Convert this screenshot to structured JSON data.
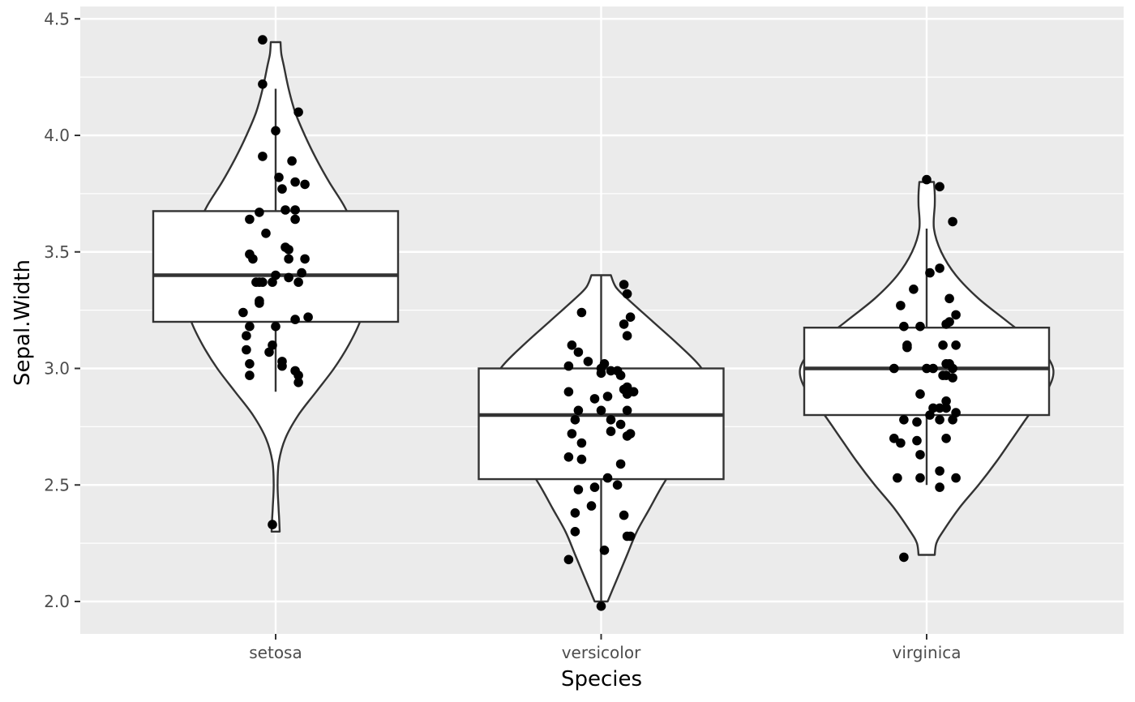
{
  "chart_data": {
    "type": "violin+boxplot+jitter",
    "xlabel": "Species",
    "ylabel": "Sepal.Width",
    "ylim": [
      1.86,
      4.52
    ],
    "y_ticks": [
      2.0,
      2.5,
      3.0,
      3.5,
      4.0,
      4.5
    ],
    "y_tick_labels": [
      "2.0",
      "2.5",
      "3.0",
      "3.5",
      "4.0",
      "4.5"
    ],
    "grid": true,
    "colors": {
      "panel": "#ebebeb",
      "grid": "#ffffff",
      "outline": "#333333",
      "point": "#000000",
      "fill": "#ffffff"
    },
    "categories": [
      "setosa",
      "versicolor",
      "virginica"
    ],
    "groups": [
      {
        "name": "setosa",
        "box": {
          "lower_whisker": 2.9,
          "q1": 3.2,
          "median": 3.4,
          "q3": 3.675,
          "upper_whisker": 4.2
        },
        "violin": [
          [
            2.3,
            0.025
          ],
          [
            2.35,
            0.022
          ],
          [
            2.4,
            0.018
          ],
          [
            2.5,
            0.012
          ],
          [
            2.6,
            0.02
          ],
          [
            2.7,
            0.06
          ],
          [
            2.8,
            0.14
          ],
          [
            2.9,
            0.25
          ],
          [
            3.0,
            0.36
          ],
          [
            3.1,
            0.45
          ],
          [
            3.2,
            0.52
          ],
          [
            3.3,
            0.56
          ],
          [
            3.4,
            0.57
          ],
          [
            3.5,
            0.55
          ],
          [
            3.6,
            0.49
          ],
          [
            3.7,
            0.42
          ],
          [
            3.8,
            0.33
          ],
          [
            3.9,
            0.25
          ],
          [
            4.0,
            0.18
          ],
          [
            4.1,
            0.12
          ],
          [
            4.2,
            0.08
          ],
          [
            4.3,
            0.05
          ],
          [
            4.35,
            0.035
          ],
          [
            4.4,
            0.03
          ]
        ],
        "points": [
          [
            -0.04,
            4.41
          ],
          [
            -0.04,
            4.22
          ],
          [
            0.07,
            4.1
          ],
          [
            0.0,
            4.02
          ],
          [
            -0.04,
            3.91
          ],
          [
            0.05,
            3.89
          ],
          [
            0.01,
            3.82
          ],
          [
            0.06,
            3.8
          ],
          [
            0.09,
            3.79
          ],
          [
            0.02,
            3.77
          ],
          [
            0.03,
            3.68
          ],
          [
            0.06,
            3.68
          ],
          [
            -0.05,
            3.67
          ],
          [
            -0.08,
            3.64
          ],
          [
            0.06,
            3.64
          ],
          [
            -0.03,
            3.58
          ],
          [
            0.03,
            3.52
          ],
          [
            0.04,
            3.51
          ],
          [
            -0.08,
            3.49
          ],
          [
            -0.07,
            3.47
          ],
          [
            0.04,
            3.47
          ],
          [
            0.09,
            3.47
          ],
          [
            0.08,
            3.41
          ],
          [
            0.0,
            3.4
          ],
          [
            0.04,
            3.39
          ],
          [
            -0.06,
            3.37
          ],
          [
            -0.05,
            3.37
          ],
          [
            -0.04,
            3.37
          ],
          [
            -0.01,
            3.37
          ],
          [
            0.07,
            3.37
          ],
          [
            -0.05,
            3.29
          ],
          [
            -0.05,
            3.28
          ],
          [
            -0.1,
            3.24
          ],
          [
            0.1,
            3.22
          ],
          [
            0.06,
            3.21
          ],
          [
            -0.08,
            3.18
          ],
          [
            0.0,
            3.18
          ],
          [
            -0.09,
            3.14
          ],
          [
            -0.01,
            3.1
          ],
          [
            -0.09,
            3.08
          ],
          [
            -0.02,
            3.07
          ],
          [
            0.02,
            3.03
          ],
          [
            -0.08,
            3.02
          ],
          [
            0.02,
            3.01
          ],
          [
            0.06,
            2.99
          ],
          [
            -0.08,
            2.97
          ],
          [
            0.07,
            2.97
          ],
          [
            0.07,
            2.94
          ],
          [
            -0.01,
            2.33
          ]
        ]
      },
      {
        "name": "versicolor",
        "box": {
          "lower_whisker": 2.0,
          "q1": 2.525,
          "median": 2.8,
          "q3": 3.0,
          "upper_whisker": 3.4
        },
        "violin": [
          [
            2.0,
            0.04
          ],
          [
            2.05,
            0.07
          ],
          [
            2.1,
            0.1
          ],
          [
            2.2,
            0.16
          ],
          [
            2.3,
            0.22
          ],
          [
            2.4,
            0.3
          ],
          [
            2.5,
            0.38
          ],
          [
            2.6,
            0.47
          ],
          [
            2.7,
            0.57
          ],
          [
            2.8,
            0.65
          ],
          [
            2.9,
            0.68
          ],
          [
            3.0,
            0.62
          ],
          [
            3.1,
            0.48
          ],
          [
            3.2,
            0.32
          ],
          [
            3.3,
            0.16
          ],
          [
            3.35,
            0.09
          ],
          [
            3.4,
            0.06
          ]
        ],
        "points": [
          [
            0.0,
            1.98
          ],
          [
            -0.1,
            2.18
          ],
          [
            0.01,
            2.22
          ],
          [
            0.09,
            2.28
          ],
          [
            0.08,
            2.28
          ],
          [
            -0.08,
            2.3
          ],
          [
            0.07,
            2.37
          ],
          [
            -0.08,
            2.38
          ],
          [
            -0.03,
            2.41
          ],
          [
            -0.02,
            2.49
          ],
          [
            -0.07,
            2.48
          ],
          [
            0.05,
            2.5
          ],
          [
            0.02,
            2.53
          ],
          [
            0.06,
            2.59
          ],
          [
            -0.1,
            2.62
          ],
          [
            -0.06,
            2.61
          ],
          [
            -0.06,
            2.68
          ],
          [
            -0.09,
            2.72
          ],
          [
            0.08,
            2.71
          ],
          [
            0.09,
            2.72
          ],
          [
            0.03,
            2.73
          ],
          [
            0.06,
            2.76
          ],
          [
            -0.08,
            2.78
          ],
          [
            0.03,
            2.78
          ],
          [
            -0.07,
            2.82
          ],
          [
            0.0,
            2.82
          ],
          [
            0.08,
            2.82
          ],
          [
            -0.02,
            2.87
          ],
          [
            0.02,
            2.88
          ],
          [
            -0.1,
            2.9
          ],
          [
            0.1,
            2.9
          ],
          [
            0.08,
            2.89
          ],
          [
            0.07,
            2.91
          ],
          [
            0.08,
            2.92
          ],
          [
            0.0,
            2.98
          ],
          [
            0.05,
            2.99
          ],
          [
            0.03,
            2.99
          ],
          [
            0.06,
            2.97
          ],
          [
            -0.04,
            3.03
          ],
          [
            0.01,
            3.02
          ],
          [
            0.0,
            3.0
          ],
          [
            -0.1,
            3.01
          ],
          [
            -0.07,
            3.07
          ],
          [
            -0.09,
            3.1
          ],
          [
            0.08,
            3.14
          ],
          [
            0.07,
            3.19
          ],
          [
            -0.06,
            3.24
          ],
          [
            0.09,
            3.22
          ],
          [
            0.08,
            3.32
          ],
          [
            0.07,
            3.36
          ]
        ]
      },
      {
        "name": "virginica",
        "box": {
          "lower_whisker": 2.5,
          "q1": 2.8,
          "median": 3.0,
          "q3": 3.175,
          "upper_whisker": 3.6
        },
        "violin": [
          [
            2.2,
            0.05
          ],
          [
            2.25,
            0.06
          ],
          [
            2.3,
            0.1
          ],
          [
            2.4,
            0.2
          ],
          [
            2.5,
            0.32
          ],
          [
            2.6,
            0.43
          ],
          [
            2.7,
            0.53
          ],
          [
            2.8,
            0.63
          ],
          [
            2.9,
            0.74
          ],
          [
            3.0,
            0.78
          ],
          [
            3.1,
            0.68
          ],
          [
            3.2,
            0.5
          ],
          [
            3.3,
            0.32
          ],
          [
            3.4,
            0.18
          ],
          [
            3.5,
            0.09
          ],
          [
            3.6,
            0.045
          ],
          [
            3.7,
            0.05
          ],
          [
            3.75,
            0.05
          ],
          [
            3.8,
            0.045
          ]
        ],
        "points": [
          [
            -0.07,
            2.19
          ],
          [
            -0.09,
            2.53
          ],
          [
            -0.02,
            2.53
          ],
          [
            0.09,
            2.53
          ],
          [
            0.04,
            2.56
          ],
          [
            0.04,
            2.49
          ],
          [
            -0.02,
            2.63
          ],
          [
            -0.1,
            2.7
          ],
          [
            -0.03,
            2.69
          ],
          [
            -0.08,
            2.68
          ],
          [
            0.06,
            2.7
          ],
          [
            -0.03,
            2.77
          ],
          [
            0.08,
            2.78
          ],
          [
            -0.07,
            2.78
          ],
          [
            0.04,
            2.78
          ],
          [
            0.01,
            2.8
          ],
          [
            0.09,
            2.81
          ],
          [
            0.04,
            2.83
          ],
          [
            0.06,
            2.83
          ],
          [
            0.02,
            2.83
          ],
          [
            0.06,
            2.86
          ],
          [
            -0.02,
            2.89
          ],
          [
            0.0,
            3.0
          ],
          [
            0.02,
            3.0
          ],
          [
            0.08,
            3.0
          ],
          [
            0.06,
            3.02
          ],
          [
            0.07,
            3.02
          ],
          [
            0.05,
            2.97
          ],
          [
            -0.1,
            3.0
          ],
          [
            0.06,
            2.97
          ],
          [
            0.08,
            2.96
          ],
          [
            -0.06,
            3.1
          ],
          [
            -0.06,
            3.09
          ],
          [
            0.05,
            3.1
          ],
          [
            0.09,
            3.1
          ],
          [
            0.06,
            3.19
          ],
          [
            0.07,
            3.2
          ],
          [
            -0.07,
            3.18
          ],
          [
            -0.02,
            3.18
          ],
          [
            0.09,
            3.23
          ],
          [
            -0.08,
            3.27
          ],
          [
            0.07,
            3.3
          ],
          [
            -0.04,
            3.34
          ],
          [
            0.01,
            3.41
          ],
          [
            0.04,
            3.43
          ],
          [
            0.08,
            3.63
          ],
          [
            0.04,
            3.78
          ],
          [
            0.0,
            3.81
          ]
        ]
      }
    ]
  }
}
